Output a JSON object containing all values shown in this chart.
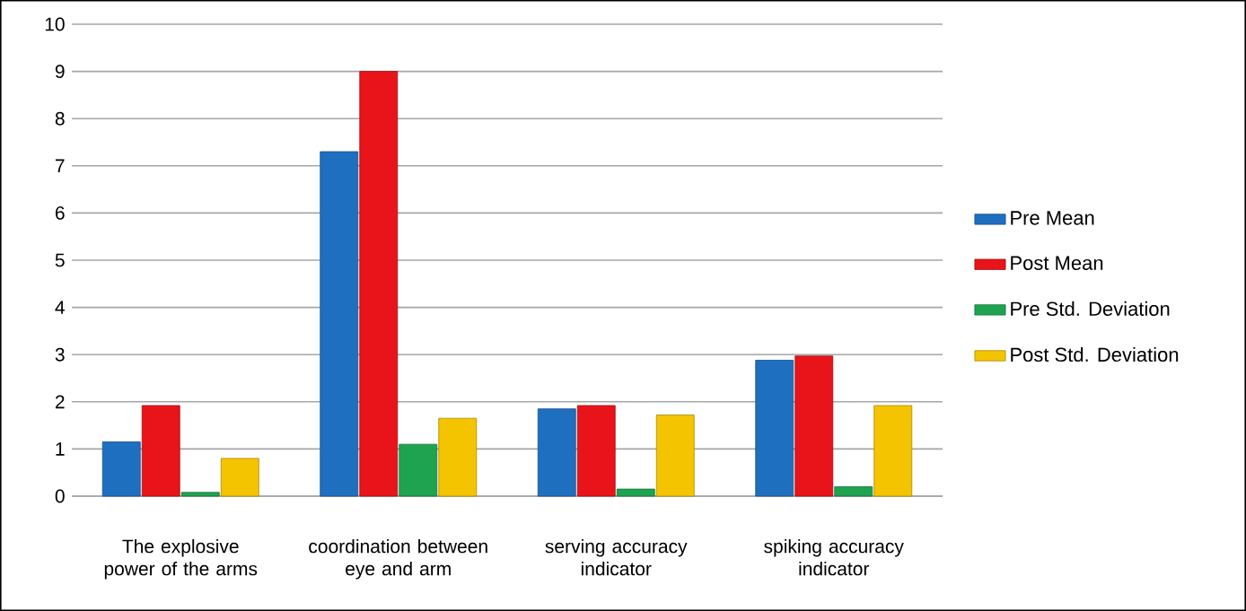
{
  "chart_data": {
    "type": "bar",
    "categories": [
      "The explosive power of the arms",
      "coordination between eye and arm",
      "serving accuracy indicator",
      "spiking accuracy indicator"
    ],
    "series": [
      {
        "name": "Pre Mean",
        "color": "#1f6fc0",
        "values": [
          1.15,
          7.3,
          1.85,
          2.88
        ]
      },
      {
        "name": "Post Mean",
        "color": "#e8141a",
        "values": [
          1.92,
          9.0,
          1.92,
          2.97
        ]
      },
      {
        "name": "Pre Std. Deviation",
        "color": "#1ea350",
        "values": [
          0.08,
          1.1,
          0.15,
          0.2
        ]
      },
      {
        "name": "Post Std. Deviation",
        "color": "#f5c400",
        "values": [
          0.8,
          1.65,
          1.72,
          1.92
        ]
      }
    ],
    "ylim": [
      0,
      10
    ],
    "yticks": [
      0,
      1,
      2,
      3,
      4,
      5,
      6,
      7,
      8,
      9,
      10
    ],
    "grid": "y",
    "legend": "right"
  }
}
